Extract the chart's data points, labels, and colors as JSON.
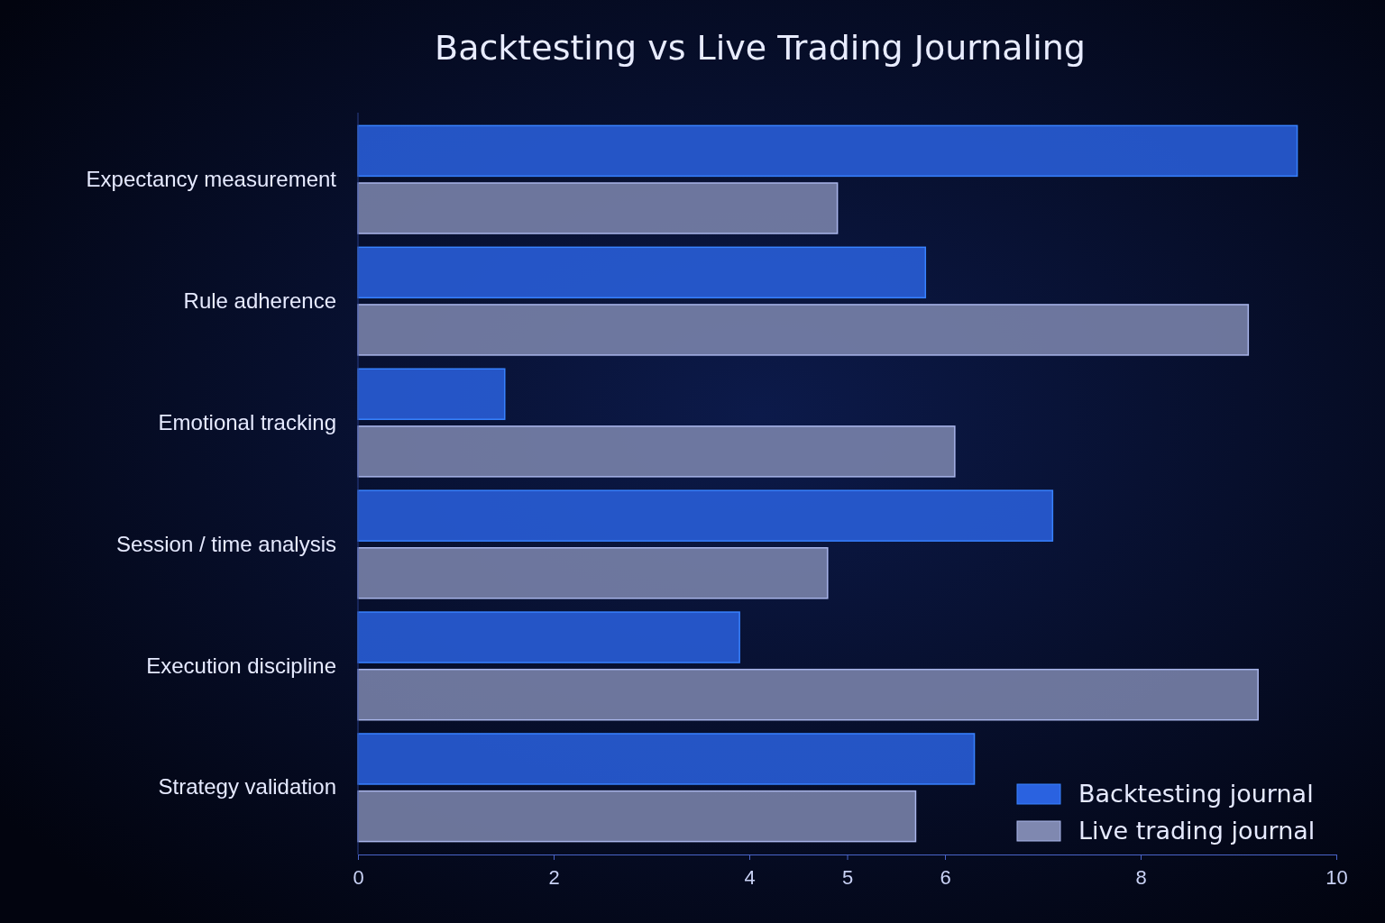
{
  "chart_data": {
    "type": "bar",
    "orientation": "horizontal",
    "title": "Backtesting vs Live Trading Journaling",
    "categories": [
      "Expectancy measurement",
      "Rule adherence",
      "Emotional tracking",
      "Session / time  analysis",
      "Execution discipline",
      "Strategy validation"
    ],
    "series": [
      {
        "name": "Backtesting journal",
        "color": "#2a62e0",
        "values": [
          9.6,
          5.8,
          1.5,
          7.1,
          3.9,
          6.3
        ]
      },
      {
        "name": "Live trading journal",
        "color": "#7f88b0",
        "values": [
          4.9,
          9.1,
          6.1,
          4.8,
          9.2,
          5.7
        ]
      }
    ],
    "xlim": [
      0,
      10
    ],
    "xticks": [
      0,
      2,
      4,
      5,
      6,
      8,
      10
    ],
    "grid": false,
    "legend": "bottom right"
  }
}
